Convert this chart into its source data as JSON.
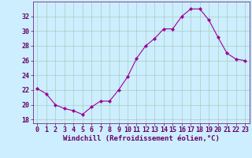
{
  "x": [
    0,
    1,
    2,
    3,
    4,
    5,
    6,
    7,
    8,
    9,
    10,
    11,
    12,
    13,
    14,
    15,
    16,
    17,
    18,
    19,
    20,
    21,
    22,
    23
  ],
  "y": [
    22.2,
    21.5,
    20.0,
    19.5,
    19.2,
    18.7,
    19.7,
    20.5,
    20.5,
    22.0,
    23.8,
    26.3,
    28.0,
    29.0,
    30.3,
    30.3,
    32.0,
    33.0,
    33.0,
    31.5,
    29.2,
    27.0,
    26.2,
    26.0
  ],
  "line_color": "#990099",
  "marker": "D",
  "marker_size": 2.2,
  "bg_color": "#cceeff",
  "grid_color": "#aaccbb",
  "xlabel": "Windchill (Refroidissement éolien,°C)",
  "xlabel_color": "#660066",
  "tick_color": "#660066",
  "xlim": [
    -0.5,
    23.5
  ],
  "ylim": [
    17.5,
    34.0
  ],
  "yticks": [
    18,
    20,
    22,
    24,
    26,
    28,
    30,
    32
  ],
  "xticks": [
    0,
    1,
    2,
    3,
    4,
    5,
    6,
    7,
    8,
    9,
    10,
    11,
    12,
    13,
    14,
    15,
    16,
    17,
    18,
    19,
    20,
    21,
    22,
    23
  ],
  "xlabel_fontsize": 6.5,
  "tick_fontsize": 6.0
}
